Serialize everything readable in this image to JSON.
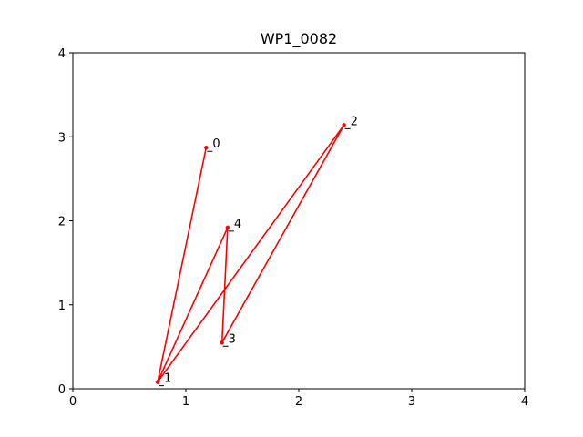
{
  "chart_data": {
    "type": "line",
    "title": "WP1_0082",
    "xlabel": "",
    "ylabel": "",
    "xlim": [
      0,
      4
    ],
    "ylim": [
      0,
      4
    ],
    "xticks": [
      "0",
      "1",
      "2",
      "3",
      "4"
    ],
    "yticks": [
      "0",
      "1",
      "2",
      "3",
      "4"
    ],
    "grid": false,
    "series": [
      {
        "color": "#ff0000",
        "points": [
          {
            "label": "0",
            "x": 1.18,
            "y": 2.87
          },
          {
            "label": "1",
            "x": 0.75,
            "y": 0.08
          },
          {
            "label": "2",
            "x": 2.4,
            "y": 3.14
          },
          {
            "label": "3",
            "x": 1.32,
            "y": 0.55
          },
          {
            "label": "4",
            "x": 1.37,
            "y": 1.92
          },
          {
            "label": "",
            "x": 0.75,
            "y": 0.08
          }
        ]
      }
    ]
  }
}
